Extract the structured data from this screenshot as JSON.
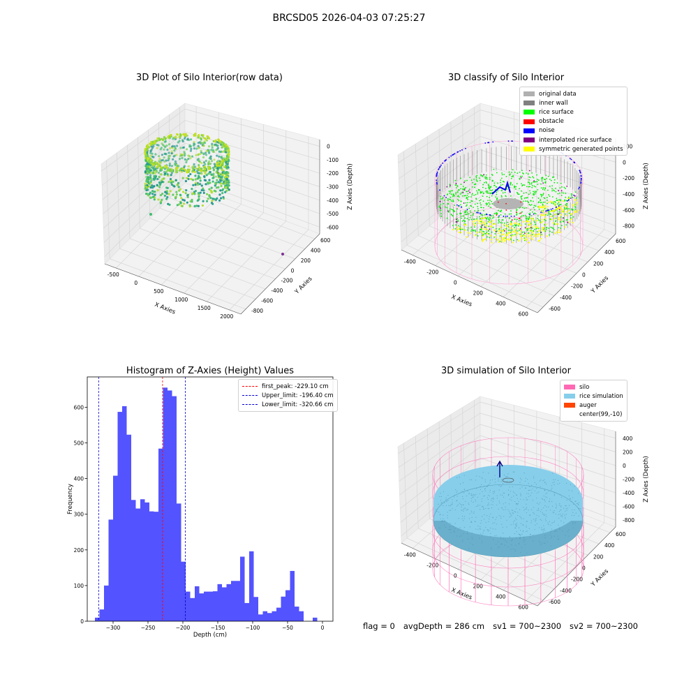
{
  "figure": {
    "suptitle": "BRCSD05 2026-04-03 07:25:27",
    "footer": {
      "flag": "flag = 0",
      "avg_depth": "avgDepth = 286 cm",
      "sv1": "sv1 = 700~2300",
      "sv2": "sv2 = 700~2300"
    },
    "colors": {
      "histogram": "#4444ff",
      "first_peak": "#ff0000",
      "limits": "#0000cc",
      "silo": "#ff69b4",
      "rice_simulation": "#87ceeb",
      "auger": "#ff4500"
    }
  },
  "chart_data": [
    {
      "type": "scatter",
      "title": "3D Plot of Silo Interior(row data)",
      "xlabel": "X Axies",
      "ylabel": "Y Axies",
      "zlabel": "Z Axies (Depth)",
      "x_ticks": [
        "-500",
        "0",
        "500",
        "1000",
        "1500",
        "2000"
      ],
      "y_ticks": [
        "600",
        "400",
        "200",
        "0",
        "-200",
        "-400",
        "-600",
        "-800"
      ],
      "z_ticks": [
        "0",
        "-100",
        "-200",
        "-300",
        "-400",
        "-500",
        "-600"
      ],
      "colormap": "viridis"
    },
    {
      "type": "scatter",
      "title": "3D classify of Silo Interior",
      "xlabel": "X Axies",
      "ylabel": "Y Axies",
      "zlabel": "Z Axies (Depth)",
      "x_ticks": [
        "-400",
        "-200",
        "0",
        "200",
        "400",
        "600"
      ],
      "y_ticks": [
        "600",
        "400",
        "200",
        "0",
        "-200",
        "-400",
        "-600"
      ],
      "z_ticks": [
        "200",
        "0",
        "-200",
        "-400",
        "-600",
        "-800"
      ],
      "legend": [
        {
          "label": "original data",
          "color": "#b0b0b0"
        },
        {
          "label": "inner wall",
          "color": "#808080"
        },
        {
          "label": "rice surface",
          "color": "#00ff00"
        },
        {
          "label": "obstacle",
          "color": "#ff0000"
        },
        {
          "label": "noise",
          "color": "#0000ff"
        },
        {
          "label": "interpolated rice surface",
          "color": "#800080"
        },
        {
          "label": "symmetric generated points",
          "color": "#ffff00"
        }
      ]
    },
    {
      "type": "bar",
      "title": "Histogram of Z-Axies (Height) Values",
      "xlabel": "Depth (cm)",
      "ylabel": "Frequency",
      "xlim": [
        -337,
        15
      ],
      "ylim": [
        0,
        685
      ],
      "x_ticks": [
        -300,
        -250,
        -200,
        -150,
        -100,
        -50,
        0
      ],
      "y_ticks": [
        0,
        100,
        200,
        300,
        400,
        500,
        600
      ],
      "bin_start": -326,
      "bin_width": 6.5,
      "values": [
        10,
        33,
        100,
        285,
        408,
        587,
        603,
        523,
        340,
        316,
        342,
        333,
        308,
        307,
        484,
        655,
        647,
        631,
        330,
        167,
        83,
        65,
        98,
        78,
        83,
        83,
        84,
        104,
        95,
        104,
        113,
        113,
        181,
        51,
        196,
        68,
        19,
        28,
        23,
        28,
        38,
        69,
        87,
        141,
        41,
        28,
        0,
        0,
        10
      ],
      "lines": [
        {
          "label": "first_peak: -229.10 cm",
          "x": -229.1,
          "color": "#ff0000"
        },
        {
          "label": "Upper_limit: -196.40 cm",
          "x": -196.4,
          "color": "#0000cc"
        },
        {
          "label": "Lower_limit: -320.66 cm",
          "x": -320.66,
          "color": "#0000cc"
        }
      ]
    },
    {
      "type": "scatter",
      "title": "3D simulation of Silo Interior",
      "xlabel": "X Axies",
      "ylabel": "Y Axies",
      "zlabel": "Z Axies (Depth)",
      "x_ticks": [
        "-400",
        "-200",
        "0",
        "200",
        "400",
        "600"
      ],
      "y_ticks": [
        "600",
        "400",
        "200",
        "0",
        "-200",
        "-400",
        "-600"
      ],
      "z_ticks": [
        "400",
        "200",
        "0",
        "-200",
        "-400",
        "-600",
        "-800"
      ],
      "legend": [
        {
          "label": "silo",
          "color": "#ff69b4"
        },
        {
          "label": "rice simulation",
          "color": "#87ceeb"
        },
        {
          "label": "auger",
          "color": "#ff4500"
        },
        {
          "label": "center(99,-10)",
          "color": ""
        }
      ]
    }
  ]
}
